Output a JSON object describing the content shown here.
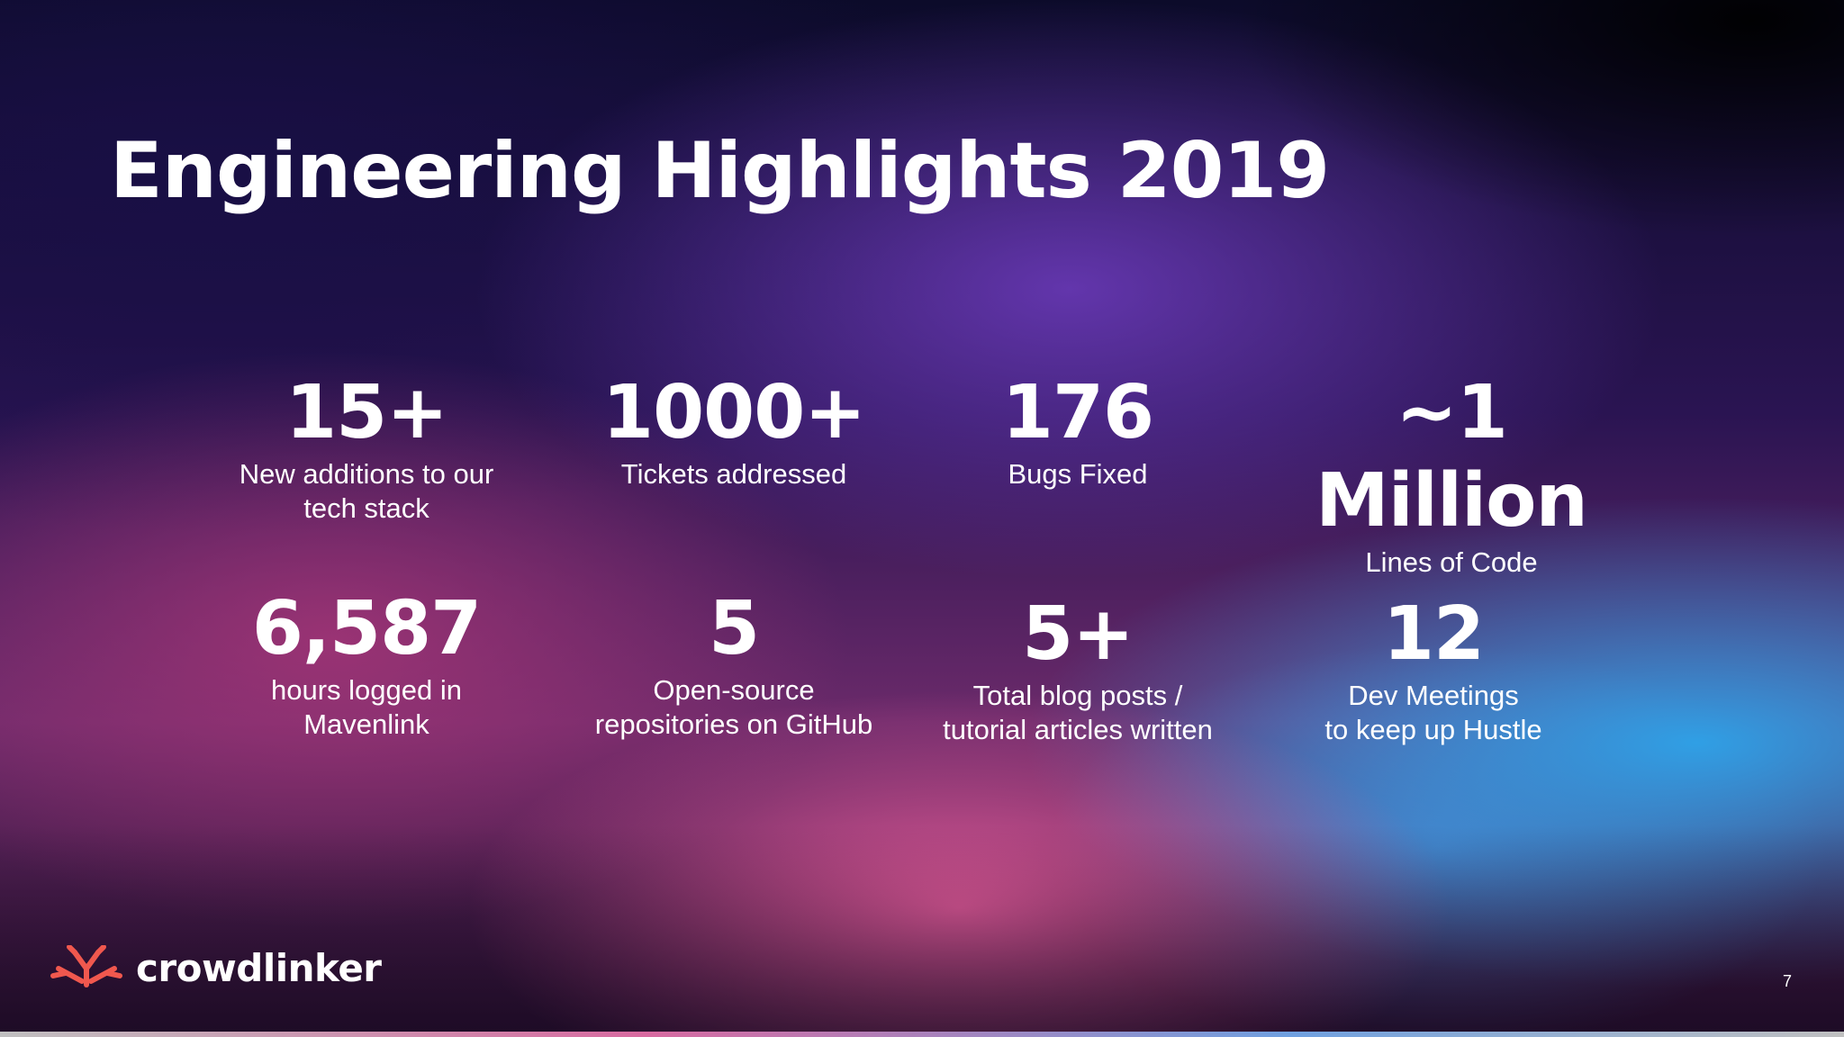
{
  "slide": {
    "title": "Engineering Highlights 2019",
    "stats": [
      {
        "value": "15+",
        "label": "New additions to our\ntech stack"
      },
      {
        "value": "1000+",
        "label": "Tickets addressed"
      },
      {
        "value": "176",
        "label": "Bugs Fixed"
      },
      {
        "value": "~1 Million",
        "label": "Lines of Code"
      },
      {
        "value": "6,587",
        "label": "hours logged in\nMavenlink"
      },
      {
        "value": "5",
        "label": "Open-source\nrepositories on GitHub"
      },
      {
        "value": "5+",
        "label": "Total blog posts /\ntutorial articles written"
      },
      {
        "value": "12",
        "label": "Dev Meetings\nto keep up Hustle"
      }
    ],
    "logo": {
      "name": "crowdlinker",
      "icon": "crowdlinker-logo-icon",
      "color": "#f0584e"
    },
    "page_number": "7"
  }
}
